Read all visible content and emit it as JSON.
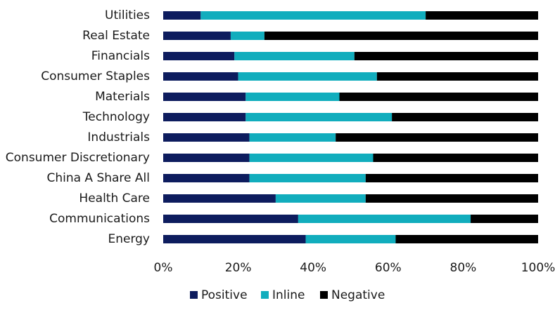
{
  "chart_data": {
    "type": "bar",
    "orientation": "horizontal",
    "stacked": true,
    "title": "",
    "xlabel": "",
    "ylabel": "",
    "xlim": [
      0,
      100
    ],
    "x_ticks": [
      "0%",
      "20%",
      "40%",
      "60%",
      "80%",
      "100%"
    ],
    "grid": false,
    "legend_position": "bottom",
    "categories": [
      "Utilities",
      "Real Estate",
      "Financials",
      "Consumer Staples",
      "Materials",
      "Technology",
      "Industrials",
      "Consumer Discretionary",
      "China A Share All",
      "Health Care",
      "Communications",
      "Energy"
    ],
    "series": [
      {
        "name": "Positive",
        "color": "#0d1c5e",
        "values": [
          10,
          18,
          19,
          20,
          22,
          22,
          23,
          23,
          23,
          30,
          36,
          38
        ]
      },
      {
        "name": "Inline",
        "color": "#11adbd",
        "values": [
          60,
          9,
          32,
          37,
          25,
          39,
          23,
          33,
          31,
          24,
          46,
          24
        ]
      },
      {
        "name": "Negative",
        "color": "#000000",
        "values": [
          30,
          73,
          49,
          43,
          53,
          39,
          54,
          44,
          46,
          46,
          18,
          38
        ]
      }
    ]
  }
}
